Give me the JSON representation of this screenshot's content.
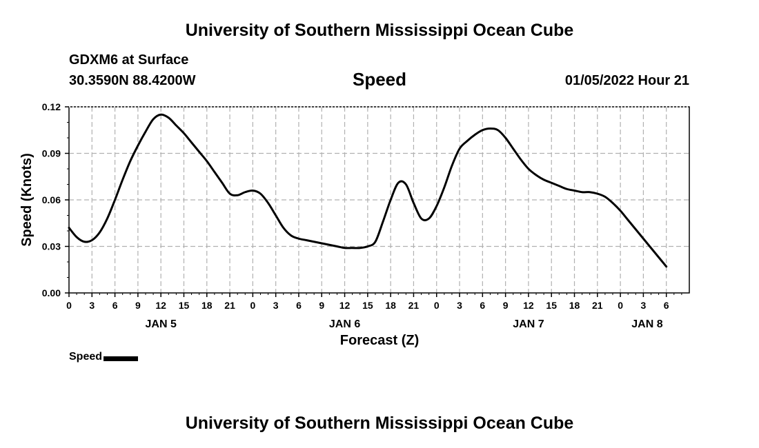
{
  "header": {
    "title": "University of Southern Mississippi Ocean Cube",
    "station": "GDXM6 at Surface",
    "coords": "30.3590N  88.4200W",
    "subtitle": "Speed",
    "datetime": "01/05/2022 Hour 21"
  },
  "footer": {
    "title": "University of Southern Mississippi Ocean Cube"
  },
  "legend": {
    "label": "Speed"
  },
  "colors": {
    "line": "#000000",
    "grid": "#b0b0b0",
    "background": "#ffffff"
  },
  "chart_data": {
    "type": "line",
    "title": "Speed",
    "xlabel": "Forecast (Z)",
    "ylabel": "Speed (Knots)",
    "xlim": [
      0,
      81
    ],
    "ylim": [
      0,
      0.12
    ],
    "grid": true,
    "legend_position": "bottom-left",
    "y_ticks": [
      {
        "value": 0.0,
        "label": "0.00"
      },
      {
        "value": 0.03,
        "label": "0.03"
      },
      {
        "value": 0.06,
        "label": "0.06"
      },
      {
        "value": 0.09,
        "label": "0.09"
      },
      {
        "value": 0.12,
        "label": "0.12"
      }
    ],
    "x_ticks": [
      {
        "value": 0,
        "label": "0"
      },
      {
        "value": 3,
        "label": "3"
      },
      {
        "value": 6,
        "label": "6"
      },
      {
        "value": 9,
        "label": "9"
      },
      {
        "value": 12,
        "label": "12"
      },
      {
        "value": 15,
        "label": "15"
      },
      {
        "value": 18,
        "label": "18"
      },
      {
        "value": 21,
        "label": "21"
      },
      {
        "value": 24,
        "label": "0"
      },
      {
        "value": 27,
        "label": "3"
      },
      {
        "value": 30,
        "label": "6"
      },
      {
        "value": 33,
        "label": "9"
      },
      {
        "value": 36,
        "label": "12"
      },
      {
        "value": 39,
        "label": "15"
      },
      {
        "value": 42,
        "label": "18"
      },
      {
        "value": 45,
        "label": "21"
      },
      {
        "value": 48,
        "label": "0"
      },
      {
        "value": 51,
        "label": "3"
      },
      {
        "value": 54,
        "label": "6"
      },
      {
        "value": 57,
        "label": "9"
      },
      {
        "value": 60,
        "label": "12"
      },
      {
        "value": 63,
        "label": "15"
      },
      {
        "value": 66,
        "label": "18"
      },
      {
        "value": 69,
        "label": "21"
      },
      {
        "value": 72,
        "label": "0"
      },
      {
        "value": 75,
        "label": "3"
      },
      {
        "value": 78,
        "label": "6"
      }
    ],
    "day_labels": [
      {
        "value": 12,
        "label": "JAN 5"
      },
      {
        "value": 36,
        "label": "JAN 6"
      },
      {
        "value": 60,
        "label": "JAN 7"
      },
      {
        "value": 75.5,
        "label": "JAN 8"
      }
    ],
    "series": [
      {
        "name": "Speed",
        "x": [
          0,
          1,
          2,
          3,
          4,
          5,
          6,
          7,
          8,
          9,
          10,
          11,
          12,
          13,
          14,
          15,
          16,
          17,
          18,
          19,
          20,
          21,
          22,
          23,
          24,
          25,
          26,
          27,
          28,
          29,
          30,
          31,
          32,
          33,
          34,
          35,
          36,
          37,
          38,
          39,
          40,
          41,
          42,
          43,
          44,
          45,
          46,
          47,
          48,
          49,
          50,
          51,
          52,
          53,
          54,
          55,
          56,
          57,
          58,
          59,
          60,
          61,
          62,
          63,
          64,
          65,
          66,
          67,
          68,
          69,
          70,
          71,
          72,
          73,
          74,
          75,
          76,
          77,
          78
        ],
        "values": [
          0.042,
          0.036,
          0.033,
          0.034,
          0.039,
          0.048,
          0.06,
          0.073,
          0.085,
          0.095,
          0.104,
          0.112,
          0.115,
          0.113,
          0.108,
          0.103,
          0.097,
          0.091,
          0.085,
          0.078,
          0.071,
          0.064,
          0.063,
          0.065,
          0.066,
          0.064,
          0.058,
          0.05,
          0.042,
          0.037,
          0.035,
          0.034,
          0.033,
          0.032,
          0.031,
          0.03,
          0.029,
          0.029,
          0.029,
          0.03,
          0.033,
          0.046,
          0.06,
          0.071,
          0.07,
          0.058,
          0.048,
          0.048,
          0.056,
          0.068,
          0.082,
          0.093,
          0.098,
          0.102,
          0.105,
          0.106,
          0.105,
          0.1,
          0.093,
          0.086,
          0.08,
          0.076,
          0.073,
          0.071,
          0.069,
          0.067,
          0.066,
          0.065,
          0.065,
          0.064,
          0.062,
          0.058,
          0.053,
          0.047,
          0.041,
          0.035,
          0.029,
          0.023,
          0.017
        ]
      }
    ]
  }
}
